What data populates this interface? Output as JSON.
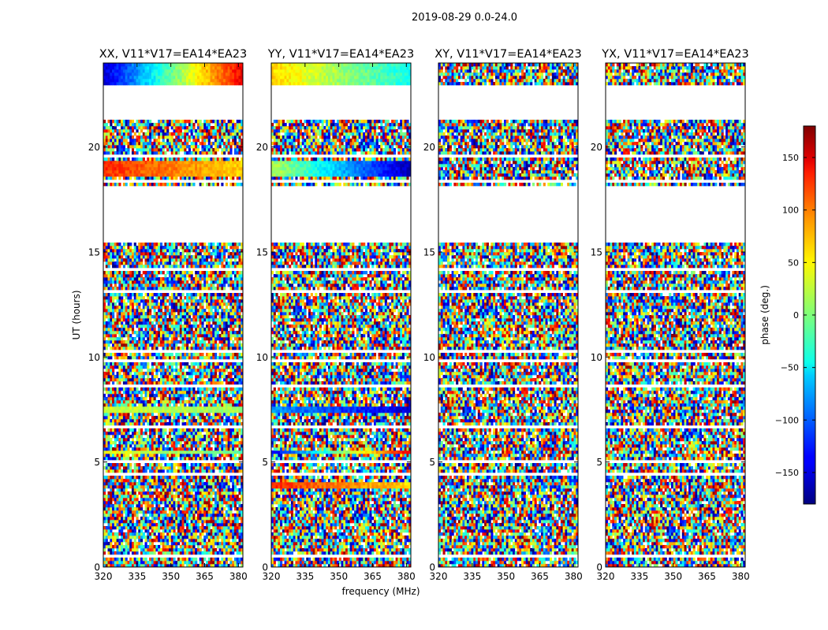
{
  "figure": {
    "suptitle": "2019-08-29 0.0-24.0"
  },
  "chart_data": {
    "type": "heatmap",
    "xlabel": "frequency (MHz)",
    "ylabel": "UT (hours)",
    "xlim": [
      320,
      382
    ],
    "ylim": [
      0,
      24
    ],
    "xticks": [
      "320",
      "335",
      "350",
      "365",
      "380"
    ],
    "yticks": [
      "0",
      "5",
      "10",
      "15",
      "20"
    ],
    "panels": [
      {
        "title": "XX, V11*V17=EA14*EA23"
      },
      {
        "title": "YY, V11*V17=EA14*EA23"
      },
      {
        "title": "XY, V11*V17=EA14*EA23"
      },
      {
        "title": "YX, V11*V17=EA14*EA23"
      }
    ],
    "colorbar": {
      "label": "phase (deg.)",
      "range": [
        -180,
        180
      ],
      "ticks": [
        "150",
        "100",
        "50",
        "0",
        "−50",
        "−100",
        "−150"
      ],
      "colormap": "jet"
    },
    "data_gaps_hours": [
      [
        0.45,
        0.6
      ],
      [
        1.3,
        1.4
      ],
      [
        2.2,
        2.3
      ],
      [
        4.3,
        4.45
      ],
      [
        5.0,
        5.15
      ],
      [
        6.6,
        6.75
      ],
      [
        7.9,
        8.0
      ],
      [
        8.6,
        8.7
      ],
      [
        9.7,
        9.85
      ],
      [
        10.15,
        10.3
      ],
      [
        13.1,
        13.25
      ],
      [
        14.1,
        14.3
      ],
      [
        15.4,
        18.2
      ],
      [
        18.3,
        18.4
      ],
      [
        19.5,
        19.6
      ],
      [
        20.8,
        20.9
      ],
      [
        21.3,
        22.9
      ],
      [
        23.2,
        23.3
      ]
    ],
    "coherent_bands": [
      {
        "panel": 0,
        "ut": [
          18.6,
          19.3
        ],
        "phase_start": 120,
        "phase_end": 60
      },
      {
        "panel": 0,
        "ut": [
          23.0,
          24.0
        ],
        "phase_start": -150,
        "phase_end": 140
      },
      {
        "panel": 0,
        "ut": [
          5.4,
          5.6
        ],
        "phase_start": 40,
        "phase_end": -10
      },
      {
        "panel": 0,
        "ut": [
          7.4,
          7.7
        ],
        "phase_start": 30,
        "phase_end": 10
      },
      {
        "panel": 1,
        "ut": [
          18.6,
          19.3
        ],
        "phase_start": 20,
        "phase_end": -160
      },
      {
        "panel": 1,
        "ut": [
          23.0,
          24.0
        ],
        "phase_start": 60,
        "phase_end": -40
      },
      {
        "panel": 1,
        "ut": [
          5.4,
          5.6
        ],
        "phase_start": -140,
        "phase_end": 140
      },
      {
        "panel": 1,
        "ut": [
          7.4,
          7.7
        ],
        "phase_start": -80,
        "phase_end": -150
      },
      {
        "panel": 1,
        "ut": [
          3.8,
          4.0
        ],
        "phase_start": 120,
        "phase_end": 60
      }
    ]
  }
}
